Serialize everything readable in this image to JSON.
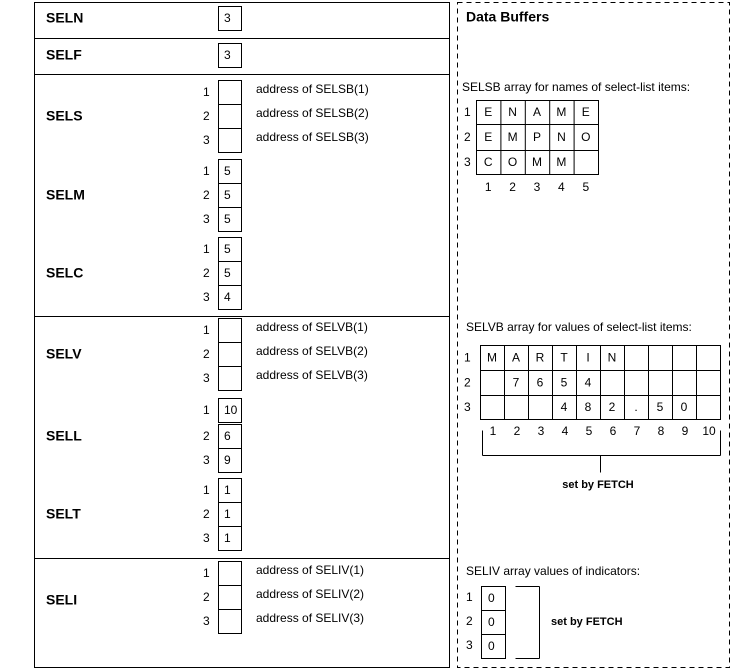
{
  "descriptor": {
    "sections": [
      {
        "fields": [
          {
            "name": "SELN",
            "values": [
              "3"
            ],
            "indexed": false
          }
        ]
      },
      {
        "fields": [
          {
            "name": "SELF",
            "values": [
              "3"
            ],
            "indexed": false
          }
        ]
      },
      {
        "fields": [
          {
            "name": "SELS",
            "values": [
              "",
              "",
              ""
            ],
            "indexed": true,
            "notes": [
              "address  of SELSB(1)",
              "address  of SELSB(2)",
              "address  of SELSB(3)"
            ]
          },
          {
            "name": "SELM",
            "values": [
              "5",
              "5",
              "5"
            ],
            "indexed": true
          },
          {
            "name": "SELC",
            "values": [
              "5",
              "5",
              "4"
            ],
            "indexed": true
          }
        ]
      },
      {
        "fields": [
          {
            "name": "SELV",
            "values": [
              "",
              "",
              ""
            ],
            "indexed": true,
            "notes": [
              "address  of SELVB(1)",
              "address  of SELVB(2)",
              "address  of SELVB(3)"
            ]
          },
          {
            "name": "SELL",
            "values": [
              "10",
              "6",
              "9"
            ],
            "indexed": true
          },
          {
            "name": "SELT",
            "values": [
              "1",
              "1",
              "1"
            ],
            "indexed": true
          }
        ]
      },
      {
        "fields": [
          {
            "name": "SELI",
            "values": [
              "",
              "",
              ""
            ],
            "indexed": true,
            "notes": [
              "address  of SELIV(1)",
              "address  of SELIV(2)",
              "address  of SELIV(3)"
            ]
          }
        ]
      }
    ],
    "row_indices": [
      "1",
      "2",
      "3"
    ]
  },
  "buffers": {
    "title": "Data Buffers",
    "selsb": {
      "caption": "SELSB array for names of select-list  items:",
      "rows": [
        [
          "E",
          "N",
          "A",
          "M",
          "E"
        ],
        [
          "E",
          "M",
          "P",
          "N",
          "O"
        ],
        [
          "C",
          "O",
          "M",
          "M",
          ""
        ]
      ],
      "row_labels": [
        "1",
        "2",
        "3"
      ],
      "col_labels": [
        "1",
        "2",
        "3",
        "4",
        "5"
      ]
    },
    "selvb": {
      "caption": "SELVB array for values of select-list  items:",
      "rows": [
        [
          "M",
          "A",
          "R",
          "T",
          "I",
          "N",
          "",
          "",
          "",
          ""
        ],
        [
          "",
          "7",
          "6",
          "5",
          "4",
          "",
          "",
          "",
          "",
          ""
        ],
        [
          "",
          "",
          "",
          "4",
          "8",
          "2",
          ".",
          "5",
          "0",
          ""
        ]
      ],
      "row_labels": [
        "1",
        "2",
        "3"
      ],
      "col_labels": [
        "1",
        "2",
        "3",
        "4",
        "5",
        "6",
        "7",
        "8",
        "9",
        "10"
      ],
      "note": "set by FETCH"
    },
    "seliv": {
      "caption": "SELIV array values  of indicators:",
      "values": [
        "0",
        "0",
        "0"
      ],
      "row_labels": [
        "1",
        "2",
        "3"
      ],
      "note": "set by FETCH"
    }
  }
}
